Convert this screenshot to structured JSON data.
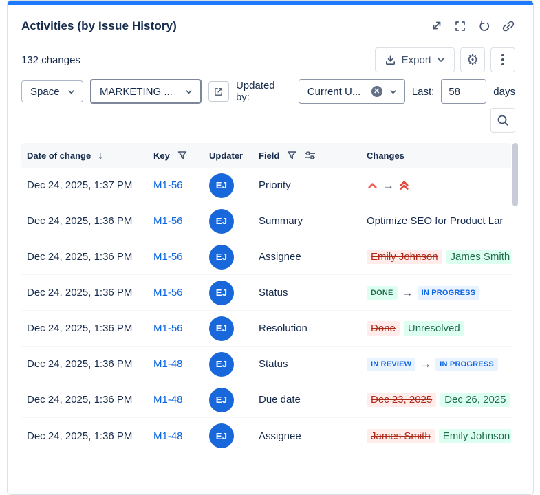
{
  "header": {
    "title": "Activities (by Issue History)",
    "icons": [
      "collapse-icon",
      "fullscreen-icon",
      "refresh-icon",
      "link-icon"
    ]
  },
  "toolbar": {
    "changes_count": "132 changes",
    "export_label": "Export",
    "icons": [
      "download-icon",
      "chevron-down-icon",
      "gear-icon",
      "kebab-menu-icon"
    ],
    "gear_glyph": "⚙"
  },
  "filters": {
    "space_label": "Space",
    "project_value": "MARKETING ...",
    "updated_by_label": "Updated by:",
    "updated_by_value": "Current U...",
    "clear_glyph": "✕",
    "last_label": "Last:",
    "last_value": "58",
    "days_label": "days",
    "icons": [
      "external-link-icon",
      "clear-icon",
      "search-icon"
    ]
  },
  "table": {
    "columns": [
      "Date of change",
      "Key",
      "Updater",
      "Field",
      "Changes"
    ],
    "sort_glyph": "↓",
    "header_icons": [
      "sort-down-icon",
      "filter-icon",
      "filter-icon",
      "field-settings-icon"
    ],
    "status_styles": {
      "DONE": {
        "bg": "#DCFFF1",
        "color": "#216E4E"
      },
      "IN PROGRESS": {
        "bg": "#E9F2FF",
        "color": "#0C66E4"
      },
      "IN REVIEW": {
        "bg": "#E9F2FF",
        "color": "#0C66E4"
      }
    },
    "rows": [
      {
        "date": "Dec 24, 2025, 1:37 PM",
        "key": "M1-56",
        "updater": "EJ",
        "field": "Priority",
        "change": {
          "type": "priority",
          "from": "high",
          "to": "highest"
        }
      },
      {
        "date": "Dec 24, 2025, 1:36 PM",
        "key": "M1-56",
        "updater": "EJ",
        "field": "Summary",
        "change": {
          "type": "text",
          "value": "Optimize SEO for Product Lar"
        }
      },
      {
        "date": "Dec 24, 2025, 1:36 PM",
        "key": "M1-56",
        "updater": "EJ",
        "field": "Assignee",
        "change": {
          "type": "old_new",
          "old": "Emily Johnson",
          "new": "James Smith"
        }
      },
      {
        "date": "Dec 24, 2025, 1:36 PM",
        "key": "M1-56",
        "updater": "EJ",
        "field": "Status",
        "change": {
          "type": "status",
          "old": "DONE",
          "new": "IN PROGRESS"
        }
      },
      {
        "date": "Dec 24, 2025, 1:36 PM",
        "key": "M1-56",
        "updater": "EJ",
        "field": "Resolution",
        "change": {
          "type": "old_new",
          "old": "Done",
          "new": "Unresolved"
        }
      },
      {
        "date": "Dec 24, 2025, 1:36 PM",
        "key": "M1-48",
        "updater": "EJ",
        "field": "Status",
        "change": {
          "type": "status",
          "old": "IN REVIEW",
          "new": "IN PROGRESS"
        }
      },
      {
        "date": "Dec 24, 2025, 1:36 PM",
        "key": "M1-48",
        "updater": "EJ",
        "field": "Due date",
        "change": {
          "type": "old_new",
          "old": "Dec 23, 2025",
          "new": "Dec 26, 2025"
        }
      },
      {
        "date": "Dec 24, 2025, 1:36 PM",
        "key": "M1-48",
        "updater": "EJ",
        "field": "Assignee",
        "change": {
          "type": "old_new",
          "old": "James Smith",
          "new": "Emily Johnson"
        }
      }
    ]
  },
  "colors": {
    "accent_bar": "#1D7AFC",
    "avatar_bg": "#1868DB",
    "link": "#0C66E4",
    "icon_slate": "#44546F",
    "removed_bg": "#FFECEB",
    "removed_text": "#AE2A19",
    "added_bg": "#DCFFF1",
    "added_text": "#216E4E",
    "priority_high": "#F15B50",
    "priority_highest": "#E2483D"
  }
}
